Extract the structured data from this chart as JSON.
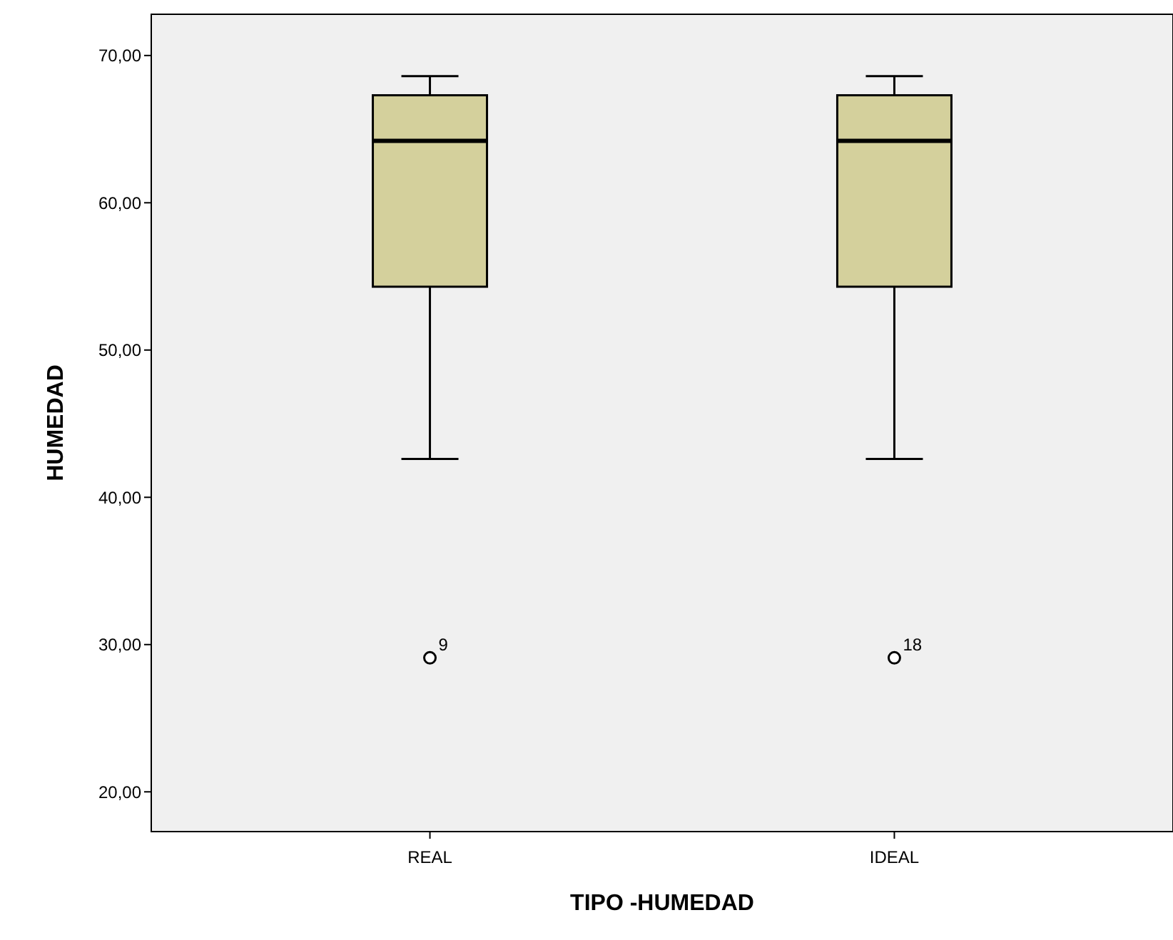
{
  "chart_data": {
    "type": "box",
    "xlabel": "TIPO -HUMEDAD",
    "ylabel": "HUMEDAD",
    "categories": [
      "REAL",
      "IDEAL"
    ],
    "boxes": [
      {
        "low": 42.6,
        "q1": 54.3,
        "median": 64.2,
        "q3": 67.3,
        "high": 68.6,
        "outliers": [
          29.1
        ]
      },
      {
        "low": 42.6,
        "q1": 54.3,
        "median": 64.2,
        "q3": 67.3,
        "high": 68.6,
        "outliers": [
          29.1
        ]
      }
    ],
    "color": "#d4d09c",
    "ylim": [
      17.3,
      72.8
    ],
    "yticks": [
      {
        "value": 20,
        "label": "20,00"
      },
      {
        "value": 30,
        "label": "30,00"
      },
      {
        "value": 40,
        "label": "40,00"
      },
      {
        "value": 50,
        "label": "50,00"
      },
      {
        "value": 60,
        "label": "60,00"
      },
      {
        "value": 70,
        "label": "70,00"
      }
    ],
    "annotations": [
      "9",
      "18"
    ],
    "grid": false
  }
}
